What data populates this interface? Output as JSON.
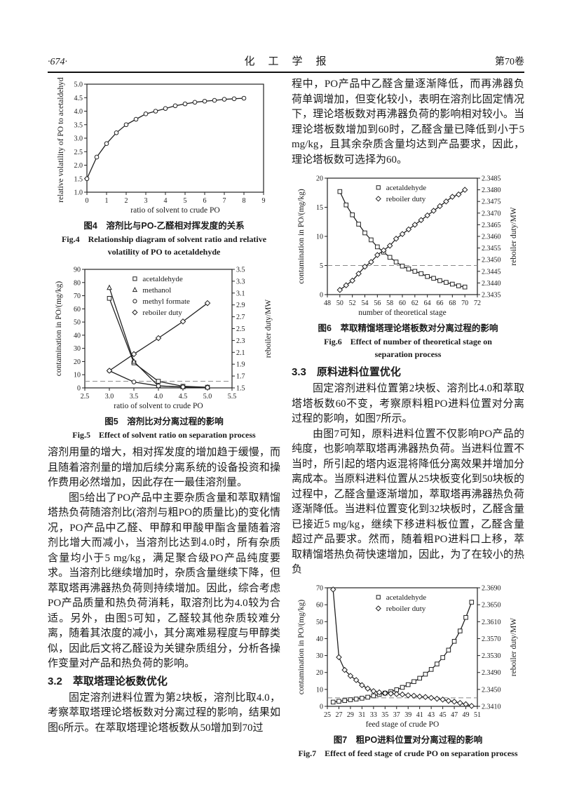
{
  "header": {
    "page_number": "·674·",
    "journal": "化　工　学　报",
    "volume": "第70卷"
  },
  "left": {
    "fig4_caption_cn": "图4　溶剂比与PO-乙醛相对挥发度的关系",
    "fig4_caption_en1": "Fig.4　Relationship diagram of solvent ratio and relative",
    "fig4_caption_en2": "volatility of PO to acetaldehyde",
    "fig5_caption_cn": "图5　溶剂比对分离过程的影响",
    "fig5_caption_en": "Fig.5　Effect of solvent ratio on separation process",
    "p1": "溶剂用量的增大，相对挥发度的增加趋于缓慢，而且随着溶剂量的增加后续分离系统的设备投资和操作费用必然增加，因此存在一最佳溶剂量。",
    "p2": "图5给出了PO产品中主要杂质含量和萃取精馏塔热负荷随溶剂比(溶剂与粗PO的质量比)的变化情况，PO产品中乙醛、甲醇和甲酸甲酯含量随着溶剂比增大而减小，当溶剂比达到4.0时，所有杂质含量均小于5 mg/kg，满足聚合级PO产品纯度要求。当溶剂比继续增加时，杂质含量继续下降，但萃取塔再沸器热负荷则持续增加。因此，综合考虑PO产品质量和热负荷消耗，取溶剂比为4.0较为合适。另外，由图5可知，乙醛较其他杂质较难分离，随着其浓度的减小，其分离难易程度与甲醇类似，因此后文将乙醛设为关键杂质组分，分析各操作变量对产品和热负荷的影响。",
    "h32": "3.2　萃取塔理论板数优化",
    "p3": "固定溶剂进料位置为第2块板，溶剂比取4.0，考察萃取塔理论塔板数对分离过程的影响，结果如图6所示。在萃取塔理论塔板数从50增加到70过"
  },
  "right": {
    "p1": "程中，PO产品中乙醛含量逐渐降低，而再沸器负荷单调增加，但变化较小，表明在溶剂比固定情况下，理论塔板数对再沸器负荷的影响相对较小。当理论塔板数增加到60时，乙醛含量已降低到小于5 mg/kg，且其余杂质含量均达到产品要求，因此，理论塔板数可选择为60。",
    "fig6_caption_cn": "图6　萃取精馏塔理论塔板数对分离过程的影响",
    "fig6_caption_en1": "Fig.6　Effect of number of theoretical stage on",
    "fig6_caption_en2": "separation process",
    "h33": "3.3　原料进料位置优化",
    "p2": "固定溶剂进料位置第2块板、溶剂比4.0和萃取塔塔板数60不变，考察原料粗PO进料位置对分离过程的影响，如图7所示。",
    "p3": "由图7可知，原料进料位置不仅影响PO产品的纯度，也影响萃取塔再沸器热负荷。当进料位置不当时，所引起的塔内返混将降低分离效果并增加分离成本。当原料进料位置从25块板变化到50块板的过程中，乙醛含量逐渐增加，萃取塔再沸器热负荷逐渐降低。当进料位置变化到32块板时，乙醛含量已接近5 mg/kg，继续下移进料板位置，乙醛含量超过产品要求。然而，随着粗PO进料口上移，萃取精馏塔热负荷快速增加，因此，为了在较小的热负",
    "fig7_caption_cn": "图7　粗PO进料位置对分离过程的影响",
    "fig7_caption_en": "Fig.7　Effect of feed stage of crude PO on separation process"
  },
  "chart_data": [
    {
      "id": "fig4",
      "type": "line",
      "xlabel": "ratio of solvent to crude PO",
      "ylabel_left": "relative volatility of PO to acetaldehyde",
      "x_axis": {
        "min": 0,
        "max": 9,
        "step": 1,
        "decimals": 0
      },
      "y_left": {
        "min": 1.0,
        "max": 5.0,
        "step": 0.5,
        "decimals": 1
      },
      "series": [
        {
          "name": "",
          "marker": "circle",
          "axis": "left",
          "x": [
            0,
            0.5,
            1,
            1.5,
            2,
            2.5,
            3,
            3.5,
            4,
            4.5,
            5,
            5.5,
            6,
            6.5,
            7,
            7.5,
            8
          ],
          "y": [
            1.5,
            2.3,
            2.8,
            3.2,
            3.5,
            3.7,
            3.9,
            4.0,
            4.1,
            4.2,
            4.27,
            4.33,
            4.37,
            4.4,
            4.44,
            4.46,
            4.48
          ]
        }
      ]
    },
    {
      "id": "fig5",
      "type": "line",
      "xlabel": "ratio of solvent to crude PO",
      "ylabel_left": "contamination in PO/(mg/kg)",
      "ylabel_right": "reboiler duty/MW",
      "x_axis": {
        "min": 2.5,
        "max": 5.5,
        "step": 0.5,
        "decimals": 1
      },
      "y_left": {
        "min": 0,
        "max": 90,
        "step": 10,
        "decimals": 0
      },
      "y_right": {
        "min": 1.5,
        "max": 3.5,
        "step": 0.2,
        "decimals": 1
      },
      "ref_line_left": 5,
      "legend": {
        "x": 0.34,
        "y": 0.02
      },
      "series": [
        {
          "name": "acetaldehyde",
          "marker": "square",
          "axis": "left",
          "x": [
            3.0,
            3.5,
            4.0,
            4.5,
            5.0
          ],
          "y": [
            68,
            19,
            5,
            1.2,
            0.5
          ]
        },
        {
          "name": "methanol",
          "marker": "triangle",
          "axis": "left",
          "x": [
            3.0,
            3.5,
            4.0,
            4.5,
            5.0
          ],
          "y": [
            76,
            20,
            1.5,
            0.7,
            0.4
          ]
        },
        {
          "name": "methyl formate",
          "marker": "circle",
          "axis": "left",
          "x": [
            3.0,
            3.5,
            4.0,
            4.5,
            5.0
          ],
          "y": [
            13,
            4.5,
            1.5,
            0.7,
            0.3
          ]
        },
        {
          "name": "reboiler duty",
          "marker": "diamond",
          "axis": "right",
          "x": [
            3.0,
            3.5,
            4.0,
            4.5,
            5.0
          ],
          "y": [
            1.79,
            2.07,
            2.34,
            2.62,
            2.93
          ]
        }
      ]
    },
    {
      "id": "fig6",
      "type": "line",
      "xlabel": "number of theoretical stage",
      "ylabel_left": "contamination in PO/(mg/kg)",
      "ylabel_right": "reboiler duty/MW",
      "x_axis": {
        "min": 48,
        "max": 72,
        "step": 2,
        "decimals": 0
      },
      "y_left": {
        "min": 0,
        "max": 20,
        "step": 5,
        "decimals": 0
      },
      "y_right": {
        "min": 2.3435,
        "max": 2.3485,
        "step": 0.0005,
        "decimals": 4
      },
      "ref_line_left": 5,
      "legend": {
        "x": 0.34,
        "y": 0.02
      },
      "series": [
        {
          "name": "acetaldehyde",
          "marker": "square",
          "axis": "left",
          "x": [
            50,
            51,
            52,
            53,
            54,
            55,
            56,
            57,
            58,
            59,
            60,
            61,
            62,
            63,
            64,
            65,
            66,
            67,
            68,
            69,
            70
          ],
          "y": [
            17.7,
            15.4,
            13.7,
            12.1,
            10.6,
            9.4,
            8.2,
            7.3,
            6.4,
            5.6,
            4.9,
            4.4,
            4.0,
            3.6,
            3.1,
            2.8,
            2.4,
            2.1,
            1.8,
            1.5,
            1.3
          ]
        },
        {
          "name": "reboiler duty",
          "marker": "diamond",
          "axis": "right",
          "x": [
            50,
            51,
            52,
            53,
            54,
            55,
            56,
            57,
            58,
            59,
            60,
            61,
            62,
            63,
            64,
            65,
            66,
            67,
            68,
            69,
            70
          ],
          "y": [
            2.3437,
            2.3439,
            2.3441,
            2.3444,
            2.3447,
            2.3449,
            2.3452,
            2.3454,
            2.3456,
            2.3459,
            2.3461,
            2.3463,
            2.3465,
            2.3467,
            2.3469,
            2.3471,
            2.3473,
            2.3475,
            2.3477,
            2.3478,
            2.348
          ]
        }
      ]
    },
    {
      "id": "fig7",
      "type": "line",
      "xlabel": "feed stage of crude PO",
      "ylabel_left": "contamination in PO/(mg/kg)",
      "ylabel_right": "reboiler duty/MW",
      "x_axis": {
        "min": 25,
        "max": 51,
        "step": 2,
        "decimals": 0
      },
      "y_left": {
        "min": 0,
        "max": 70,
        "step": 10,
        "decimals": 0
      },
      "y_right": {
        "min": 2.341,
        "max": 2.369,
        "step": 0.004,
        "decimals": 4
      },
      "ref_line_left": 5,
      "legend": {
        "x": 0.34,
        "y": 0.02
      },
      "series": [
        {
          "name": "acetaldehyde",
          "marker": "square",
          "axis": "left",
          "x": [
            26,
            27,
            28,
            29,
            30,
            31,
            32,
            33,
            34,
            35,
            36,
            37,
            38,
            39,
            40,
            41,
            42,
            43,
            44,
            45,
            46,
            47,
            48,
            49,
            50
          ],
          "y": [
            2.5,
            3.0,
            3.4,
            3.9,
            4.3,
            4.8,
            5.4,
            6.2,
            7.0,
            7.8,
            8.7,
            9.8,
            11.2,
            12.8,
            14.6,
            16.6,
            19.0,
            21.8,
            25.0,
            28.8,
            33.2,
            38.4,
            44.5,
            52.5,
            61.5
          ]
        },
        {
          "name": "reboiler duty",
          "marker": "diamond",
          "axis": "right",
          "x": [
            26,
            27,
            28,
            29,
            30,
            31,
            32,
            33,
            34,
            35,
            36,
            37,
            38,
            39,
            40,
            41,
            42,
            43,
            44,
            45,
            46,
            47,
            48,
            49,
            50
          ],
          "y": [
            2.3686,
            2.3526,
            2.3496,
            2.3482,
            2.3472,
            2.346,
            2.3452,
            2.3446,
            2.3443,
            2.3441,
            2.344,
            2.3439,
            2.3438,
            2.3436,
            2.3435,
            2.3433,
            2.3432,
            2.343,
            2.3428,
            2.3426,
            2.3423,
            2.3421,
            2.3418,
            2.3415,
            2.3411
          ]
        }
      ]
    }
  ]
}
